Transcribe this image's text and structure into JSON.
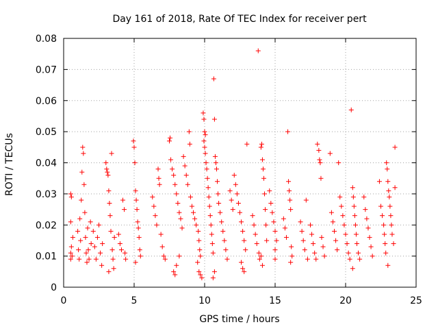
{
  "chart_data": {
    "type": "scatter",
    "title": "Day 161 of 2018, Rate Of TEC Index for receiver pert",
    "xlabel": "GPS time / hours",
    "ylabel": "ROTI / TECUs",
    "xlim": [
      0,
      25
    ],
    "ylim": [
      0,
      0.08
    ],
    "x_ticks": [
      0,
      5,
      10,
      15,
      20,
      25
    ],
    "y_ticks": [
      0,
      0.01,
      0.02,
      0.03,
      0.04,
      0.05,
      0.06,
      0.07,
      0.08
    ],
    "x_tick_labels": [
      "0",
      "5",
      "10",
      "15",
      "20",
      "25"
    ],
    "y_tick_labels": [
      "0",
      "0.01",
      "0.02",
      "0.03",
      "0.04",
      "0.05",
      "0.06",
      "0.07",
      "0.08"
    ],
    "grid": true,
    "marker": "+",
    "marker_color": "#ff0000",
    "series": [
      {
        "name": "ROTI",
        "points": [
          [
            0.5,
            0.03
          ],
          [
            0.55,
            0.029
          ],
          [
            0.5,
            0.021
          ],
          [
            0.55,
            0.013
          ],
          [
            0.6,
            0.01
          ],
          [
            0.5,
            0.009
          ],
          [
            0.65,
            0.016
          ],
          [
            0.5,
            0.011
          ],
          [
            1.0,
            0.018
          ],
          [
            1.05,
            0.012
          ],
          [
            1.1,
            0.009
          ],
          [
            1.15,
            0.022
          ],
          [
            1.2,
            0.015
          ],
          [
            1.25,
            0.028
          ],
          [
            1.3,
            0.037
          ],
          [
            1.35,
            0.045
          ],
          [
            1.4,
            0.043
          ],
          [
            1.45,
            0.033
          ],
          [
            1.5,
            0.024
          ],
          [
            1.55,
            0.016
          ],
          [
            1.6,
            0.011
          ],
          [
            1.65,
            0.008
          ],
          [
            1.7,
            0.019
          ],
          [
            1.75,
            0.012
          ],
          [
            1.8,
            0.009
          ],
          [
            1.9,
            0.021
          ],
          [
            1.95,
            0.014
          ],
          [
            2.1,
            0.018
          ],
          [
            2.2,
            0.013
          ],
          [
            2.3,
            0.009
          ],
          [
            2.4,
            0.016
          ],
          [
            2.5,
            0.02
          ],
          [
            2.6,
            0.011
          ],
          [
            2.7,
            0.007
          ],
          [
            2.75,
            0.014
          ],
          [
            3.0,
            0.04
          ],
          [
            3.05,
            0.038
          ],
          [
            3.1,
            0.037
          ],
          [
            3.15,
            0.036
          ],
          [
            3.2,
            0.031
          ],
          [
            3.25,
            0.027
          ],
          [
            3.3,
            0.023
          ],
          [
            3.35,
            0.018
          ],
          [
            3.4,
            0.043
          ],
          [
            3.45,
            0.012
          ],
          [
            3.5,
            0.009
          ],
          [
            3.55,
            0.006
          ],
          [
            3.6,
            0.016
          ],
          [
            3.2,
            0.005
          ],
          [
            3.9,
            0.017
          ],
          [
            4.0,
            0.014
          ],
          [
            4.1,
            0.012
          ],
          [
            4.2,
            0.028
          ],
          [
            4.3,
            0.025
          ],
          [
            4.35,
            0.011
          ],
          [
            4.4,
            0.009
          ],
          [
            4.95,
            0.047
          ],
          [
            5.0,
            0.045
          ],
          [
            5.05,
            0.04
          ],
          [
            5.1,
            0.031
          ],
          [
            5.15,
            0.028
          ],
          [
            5.2,
            0.025
          ],
          [
            5.25,
            0.021
          ],
          [
            5.3,
            0.019
          ],
          [
            5.35,
            0.016
          ],
          [
            5.4,
            0.012
          ],
          [
            5.45,
            0.01
          ],
          [
            5.1,
            0.008
          ],
          [
            6.3,
            0.029
          ],
          [
            6.4,
            0.026
          ],
          [
            6.5,
            0.023
          ],
          [
            6.6,
            0.02
          ],
          [
            6.7,
            0.038
          ],
          [
            6.75,
            0.035
          ],
          [
            6.8,
            0.033
          ],
          [
            6.9,
            0.017
          ],
          [
            7.0,
            0.013
          ],
          [
            7.1,
            0.01
          ],
          [
            7.2,
            0.009
          ],
          [
            7.5,
            0.047
          ],
          [
            7.55,
            0.048
          ],
          [
            7.6,
            0.041
          ],
          [
            7.7,
            0.038
          ],
          [
            7.8,
            0.036
          ],
          [
            7.9,
            0.033
          ],
          [
            8.0,
            0.03
          ],
          [
            8.1,
            0.027
          ],
          [
            8.2,
            0.024
          ],
          [
            8.3,
            0.022
          ],
          [
            8.4,
            0.019
          ],
          [
            7.8,
            0.005
          ],
          [
            7.9,
            0.004
          ],
          [
            8.0,
            0.007
          ],
          [
            8.2,
            0.01
          ],
          [
            8.5,
            0.042
          ],
          [
            8.6,
            0.039
          ],
          [
            8.7,
            0.036
          ],
          [
            8.8,
            0.033
          ],
          [
            8.9,
            0.05
          ],
          [
            8.95,
            0.046
          ],
          [
            9.0,
            0.029
          ],
          [
            9.1,
            0.026
          ],
          [
            9.2,
            0.024
          ],
          [
            9.3,
            0.022
          ],
          [
            9.4,
            0.02
          ],
          [
            9.55,
            0.018
          ],
          [
            9.6,
            0.015
          ],
          [
            9.65,
            0.012
          ],
          [
            9.7,
            0.01
          ],
          [
            9.5,
            0.008
          ],
          [
            9.6,
            0.005
          ],
          [
            9.7,
            0.004
          ],
          [
            9.8,
            0.003
          ],
          [
            9.9,
            0.056
          ],
          [
            9.95,
            0.054
          ],
          [
            10.0,
            0.05
          ],
          [
            10.05,
            0.049
          ],
          [
            9.95,
            0.047
          ],
          [
            10.0,
            0.045
          ],
          [
            10.05,
            0.043
          ],
          [
            10.1,
            0.04
          ],
          [
            10.15,
            0.038
          ],
          [
            10.2,
            0.035
          ],
          [
            10.25,
            0.032
          ],
          [
            10.3,
            0.029
          ],
          [
            10.35,
            0.026
          ],
          [
            10.4,
            0.023
          ],
          [
            10.45,
            0.02
          ],
          [
            10.5,
            0.017
          ],
          [
            10.55,
            0.014
          ],
          [
            10.6,
            0.011
          ],
          [
            10.65,
            0.067
          ],
          [
            10.7,
            0.054
          ],
          [
            10.75,
            0.042
          ],
          [
            10.8,
            0.04
          ],
          [
            10.85,
            0.038
          ],
          [
            10.9,
            0.034
          ],
          [
            10.95,
            0.03
          ],
          [
            11.0,
            0.027
          ],
          [
            11.1,
            0.024
          ],
          [
            11.2,
            0.021
          ],
          [
            11.3,
            0.018
          ],
          [
            11.4,
            0.015
          ],
          [
            11.5,
            0.012
          ],
          [
            11.6,
            0.009
          ],
          [
            10.6,
            0.003
          ],
          [
            10.7,
            0.005
          ],
          [
            11.8,
            0.031
          ],
          [
            11.9,
            0.028
          ],
          [
            12.0,
            0.025
          ],
          [
            12.1,
            0.036
          ],
          [
            12.2,
            0.033
          ],
          [
            12.3,
            0.03
          ],
          [
            12.4,
            0.027
          ],
          [
            12.5,
            0.024
          ],
          [
            12.6,
            0.021
          ],
          [
            12.7,
            0.018
          ],
          [
            12.8,
            0.015
          ],
          [
            12.9,
            0.012
          ],
          [
            13.0,
            0.046
          ],
          [
            12.6,
            0.008
          ],
          [
            12.7,
            0.006
          ],
          [
            12.8,
            0.005
          ],
          [
            13.4,
            0.023
          ],
          [
            13.5,
            0.02
          ],
          [
            13.6,
            0.017
          ],
          [
            13.7,
            0.014
          ],
          [
            13.8,
            0.076
          ],
          [
            13.85,
            0.011
          ],
          [
            13.9,
            0.009
          ],
          [
            14.0,
            0.045
          ],
          [
            14.05,
            0.046
          ],
          [
            14.1,
            0.041
          ],
          [
            14.15,
            0.038
          ],
          [
            14.2,
            0.035
          ],
          [
            14.25,
            0.03
          ],
          [
            14.3,
            0.025
          ],
          [
            14.35,
            0.02
          ],
          [
            14.4,
            0.015
          ],
          [
            14.0,
            0.01
          ],
          [
            14.1,
            0.007
          ],
          [
            14.6,
            0.031
          ],
          [
            14.7,
            0.027
          ],
          [
            14.8,
            0.024
          ],
          [
            14.9,
            0.021
          ],
          [
            15.0,
            0.018
          ],
          [
            15.1,
            0.015
          ],
          [
            15.0,
            0.012
          ],
          [
            15.0,
            0.009
          ],
          [
            15.6,
            0.022
          ],
          [
            15.7,
            0.019
          ],
          [
            15.8,
            0.016
          ],
          [
            15.9,
            0.05
          ],
          [
            15.95,
            0.034
          ],
          [
            16.0,
            0.031
          ],
          [
            16.05,
            0.028
          ],
          [
            16.1,
            0.025
          ],
          [
            16.15,
            0.013
          ],
          [
            16.2,
            0.01
          ],
          [
            16.1,
            0.008
          ],
          [
            16.8,
            0.021
          ],
          [
            16.9,
            0.018
          ],
          [
            17.0,
            0.015
          ],
          [
            17.1,
            0.012
          ],
          [
            17.2,
            0.028
          ],
          [
            17.3,
            0.009
          ],
          [
            17.5,
            0.02
          ],
          [
            17.6,
            0.017
          ],
          [
            17.7,
            0.014
          ],
          [
            17.8,
            0.011
          ],
          [
            17.9,
            0.009
          ],
          [
            18.0,
            0.046
          ],
          [
            18.1,
            0.044
          ],
          [
            18.15,
            0.041
          ],
          [
            18.2,
            0.04
          ],
          [
            18.25,
            0.035
          ],
          [
            18.3,
            0.016
          ],
          [
            18.4,
            0.013
          ],
          [
            18.5,
            0.01
          ],
          [
            18.9,
            0.043
          ],
          [
            19.0,
            0.024
          ],
          [
            19.1,
            0.021
          ],
          [
            19.2,
            0.018
          ],
          [
            19.3,
            0.015
          ],
          [
            19.4,
            0.012
          ],
          [
            19.5,
            0.04
          ],
          [
            19.6,
            0.029
          ],
          [
            19.7,
            0.026
          ],
          [
            19.8,
            0.023
          ],
          [
            19.9,
            0.02
          ],
          [
            20.0,
            0.017
          ],
          [
            20.1,
            0.014
          ],
          [
            20.2,
            0.011
          ],
          [
            20.3,
            0.009
          ],
          [
            20.4,
            0.057
          ],
          [
            20.5,
            0.032
          ],
          [
            20.55,
            0.029
          ],
          [
            20.6,
            0.026
          ],
          [
            20.65,
            0.023
          ],
          [
            20.7,
            0.02
          ],
          [
            20.75,
            0.017
          ],
          [
            20.8,
            0.014
          ],
          [
            20.9,
            0.011
          ],
          [
            21.0,
            0.009
          ],
          [
            20.5,
            0.006
          ],
          [
            21.3,
            0.029
          ],
          [
            21.4,
            0.025
          ],
          [
            21.5,
            0.022
          ],
          [
            21.6,
            0.019
          ],
          [
            21.7,
            0.016
          ],
          [
            21.8,
            0.013
          ],
          [
            21.9,
            0.01
          ],
          [
            22.4,
            0.034
          ],
          [
            22.5,
            0.026
          ],
          [
            22.6,
            0.023
          ],
          [
            22.7,
            0.02
          ],
          [
            22.75,
            0.017
          ],
          [
            22.8,
            0.014
          ],
          [
            22.85,
            0.011
          ],
          [
            22.9,
            0.04
          ],
          [
            22.95,
            0.038
          ],
          [
            23.0,
            0.034
          ],
          [
            23.05,
            0.031
          ],
          [
            23.1,
            0.029
          ],
          [
            23.15,
            0.026
          ],
          [
            23.2,
            0.023
          ],
          [
            23.25,
            0.02
          ],
          [
            23.3,
            0.017
          ],
          [
            23.4,
            0.014
          ],
          [
            23.5,
            0.045
          ],
          [
            23.5,
            0.032
          ],
          [
            23.0,
            0.007
          ]
        ]
      }
    ]
  }
}
